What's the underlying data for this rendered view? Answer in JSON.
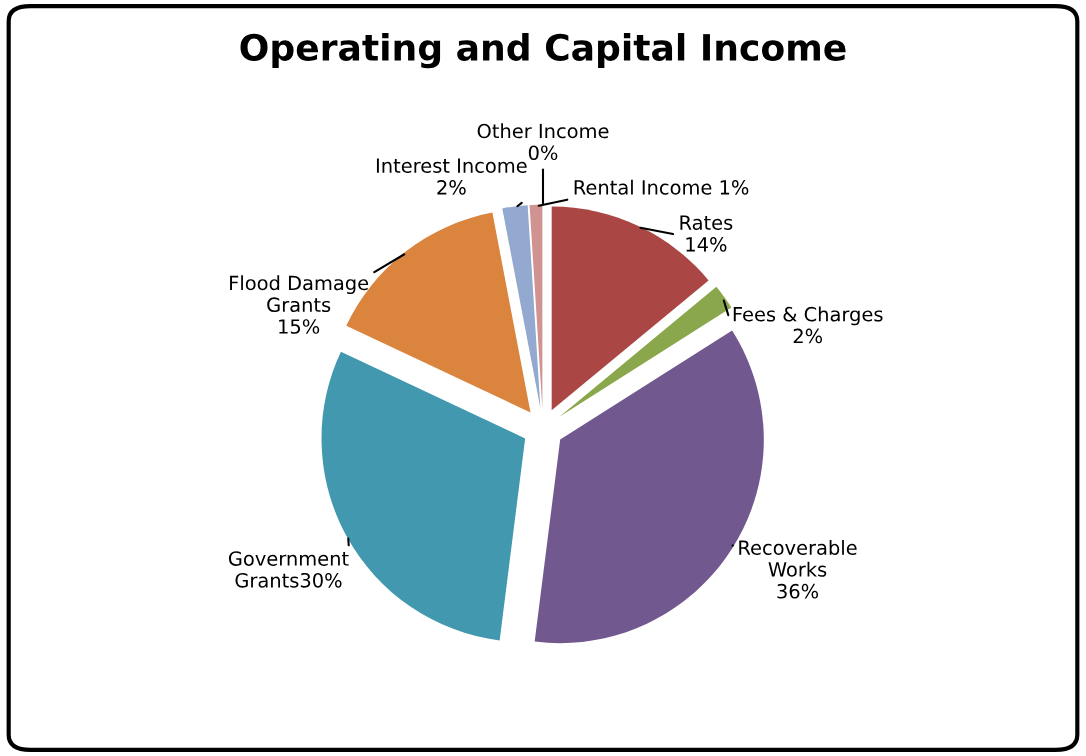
{
  "chart_data": {
    "type": "pie",
    "title": "Operating and Capital Income",
    "categories": [
      "Rates\n",
      "Fees & Charges\n",
      "Recoverable\nWorks\n",
      "Government\nGrants",
      "Flood Damage\nGrants\n",
      "Interest Income\n",
      "Rental Income ",
      "Other Income\n"
    ],
    "values": [
      14,
      2,
      36,
      30,
      15,
      2,
      1,
      0
    ],
    "value_labels": [
      "14%",
      "2%",
      "36%",
      "30%",
      "15%",
      "2%",
      "1%",
      "0%"
    ],
    "colors": [
      "#aa4644",
      "#8aa84b",
      "#71588f",
      "#4198af",
      "#db843d",
      "#93a9cf",
      "#d19392",
      "#b9cd96"
    ],
    "legend": false
  }
}
